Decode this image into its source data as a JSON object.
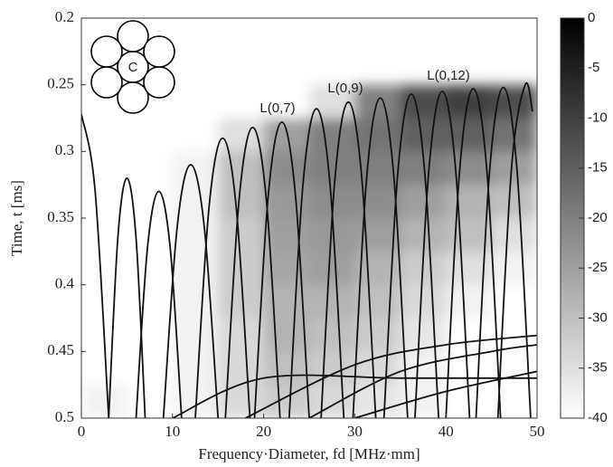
{
  "chart_data": {
    "type": "heatmap",
    "xlabel": "Frequency·Diameter, fd [MHz·mm]",
    "ylabel": "Time, t [ms]",
    "xlim": [
      0,
      50
    ],
    "xticks": [
      0,
      10,
      20,
      30,
      40,
      50
    ],
    "ylim": [
      0.5,
      0.2
    ],
    "yticks": [
      0.2,
      0.25,
      0.3,
      0.35,
      0.4,
      0.45,
      0.5
    ],
    "clim": [
      -40,
      0
    ],
    "cticks": [
      0,
      -5,
      -10,
      -15,
      -20,
      -25,
      -30,
      -35,
      -40
    ],
    "icon_label": "C",
    "annotations": [
      "L(0,7)",
      "L(0,9)",
      "L(0,12)"
    ],
    "heatmap": {
      "x_edges": [
        0,
        5,
        10,
        15,
        20,
        25,
        30,
        35,
        40,
        45,
        50
      ],
      "y_edges": [
        0.25,
        0.275,
        0.3,
        0.325,
        0.35,
        0.375,
        0.4,
        0.425,
        0.45,
        0.475,
        0.5
      ],
      "z": [
        [
          -40,
          -40,
          -40,
          -40,
          -40,
          -35,
          -20,
          -12,
          -10,
          -12
        ],
        [
          -40,
          -40,
          -40,
          -35,
          -25,
          -20,
          -18,
          -15,
          -15,
          -18
        ],
        [
          -40,
          -40,
          -38,
          -30,
          -22,
          -20,
          -20,
          -20,
          -22,
          -25
        ],
        [
          -40,
          -40,
          -38,
          -30,
          -24,
          -22,
          -22,
          -25,
          -28,
          -30
        ],
        [
          -40,
          -40,
          -38,
          -32,
          -25,
          -24,
          -25,
          -28,
          -30,
          -35
        ],
        [
          -40,
          -40,
          -38,
          -32,
          -26,
          -25,
          -28,
          -32,
          -35,
          -38
        ],
        [
          -40,
          -40,
          -38,
          -32,
          -28,
          -28,
          -30,
          -34,
          -38,
          -40
        ],
        [
          -40,
          -40,
          -38,
          -34,
          -28,
          -30,
          -32,
          -36,
          -40,
          -40
        ],
        [
          -40,
          -40,
          -38,
          -34,
          -30,
          -32,
          -34,
          -38,
          -40,
          -40
        ],
        [
          -38,
          -40,
          -38,
          -34,
          -32,
          -34,
          -36,
          -38,
          -40,
          -40
        ]
      ]
    },
    "curve_color": "#111111",
    "curves": [
      {
        "x": [
          0,
          1.5,
          3
        ],
        "y": [
          0.272,
          0.329,
          0.5
        ]
      },
      {
        "x": [
          3,
          4,
          5,
          6,
          7
        ],
        "y": [
          0.5,
          0.365,
          0.32,
          0.365,
          0.5
        ]
      },
      {
        "x": [
          6,
          7.25,
          8.5,
          9.75,
          11
        ],
        "y": [
          0.5,
          0.3725,
          0.33,
          0.3725,
          0.5
        ]
      },
      {
        "x": [
          9,
          10.5,
          12,
          13.5,
          15
        ],
        "y": [
          0.5,
          0.3575,
          0.31,
          0.3575,
          0.5
        ]
      },
      {
        "x": [
          12.5,
          14,
          15.5,
          17,
          18.5
        ],
        "y": [
          0.5,
          0.3425,
          0.29,
          0.3425,
          0.5
        ]
      },
      {
        "x": [
          15.8,
          17.3,
          18.8,
          20.3,
          21.8
        ],
        "y": [
          0.5,
          0.3365,
          0.282,
          0.3365,
          0.5
        ]
      },
      {
        "x": [
          19,
          20.5,
          22,
          23.5,
          25
        ],
        "y": [
          0.5,
          0.3335,
          0.278,
          0.3335,
          0.5
        ]
      },
      {
        "x": [
          22.8,
          24.3,
          25.8,
          27.3,
          28.8
        ],
        "y": [
          0.5,
          0.326,
          0.268,
          0.326,
          0.5
        ]
      },
      {
        "x": [
          26.3,
          27.8,
          29.3,
          30.8,
          32.3
        ],
        "y": [
          0.5,
          0.3223,
          0.263,
          0.3223,
          0.5
        ]
      },
      {
        "x": [
          29.8,
          31.3,
          32.8,
          34.3,
          35.8
        ],
        "y": [
          0.5,
          0.32,
          0.26,
          0.32,
          0.5
        ]
      },
      {
        "x": [
          33.2,
          34.7,
          36.2,
          37.7,
          39.2
        ],
        "y": [
          0.5,
          0.3178,
          0.257,
          0.3178,
          0.5
        ]
      },
      {
        "x": [
          36.6,
          38.1,
          39.6,
          41.1,
          42.6
        ],
        "y": [
          0.5,
          0.3163,
          0.255,
          0.3163,
          0.5
        ]
      },
      {
        "x": [
          40,
          41.5,
          43,
          44.5,
          46
        ],
        "y": [
          0.5,
          0.3148,
          0.253,
          0.3148,
          0.5
        ]
      },
      {
        "x": [
          43.3,
          44.8,
          46.3,
          47.8,
          49.3
        ],
        "y": [
          0.5,
          0.314,
          0.252,
          0.314,
          0.5
        ]
      },
      {
        "x": [
          45.7,
          47.2,
          48.7,
          49.5
        ],
        "y": [
          0.5,
          0.3125,
          0.25,
          0.27
        ]
      },
      {
        "x": [
          18,
          30,
          40,
          50
        ],
        "y": [
          0.5,
          0.46,
          0.445,
          0.438
        ]
      },
      {
        "x": [
          25,
          35,
          45,
          50
        ],
        "y": [
          0.5,
          0.465,
          0.45,
          0.445
        ]
      },
      {
        "x": [
          10,
          20,
          35,
          50
        ],
        "y": [
          0.5,
          0.47,
          0.47,
          0.47
        ]
      },
      {
        "x": [
          30,
          40,
          50
        ],
        "y": [
          0.5,
          0.48,
          0.465
        ]
      }
    ]
  }
}
